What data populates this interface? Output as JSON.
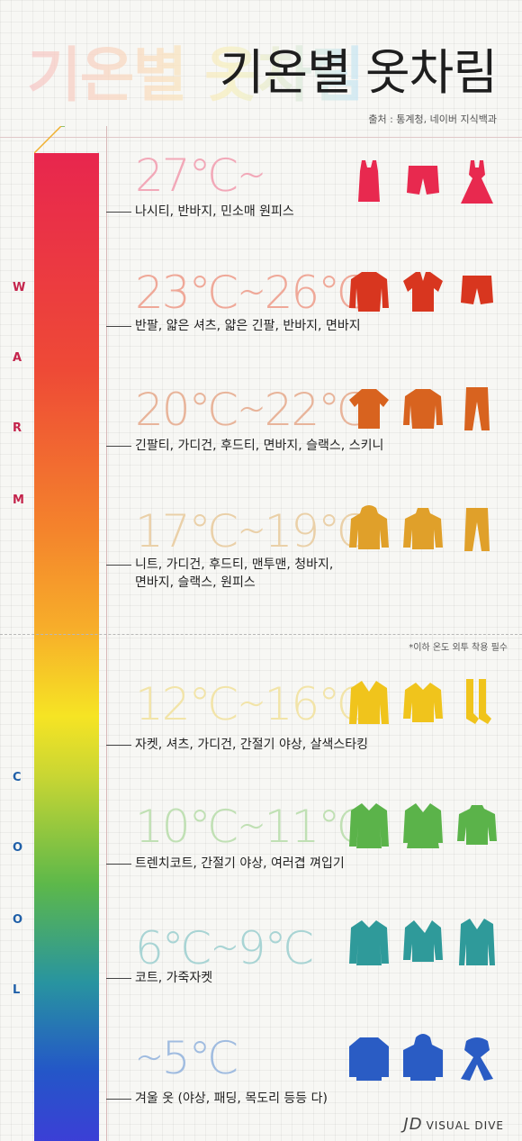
{
  "header": {
    "title": "기온별 옷차림",
    "source": "출처 : 통계청, 네이버 지식백과"
  },
  "side_labels": {
    "warm": [
      "W",
      "A",
      "R",
      "M"
    ],
    "cool": [
      "C",
      "O",
      "O",
      "L"
    ]
  },
  "note": "*이하 온도 외투 착용 필수",
  "colors": {
    "warm_label": "#c4244c",
    "cool_label": "#1f5fa8"
  },
  "bands": [
    {
      "temp": "27℃∼",
      "clothes": "나시티, 반바지, 민소매 원피스",
      "color": "#f2a8b8",
      "icon_color": "#e8294f",
      "icons": [
        "tank-top-icon",
        "shorts-icon",
        "sleeveless-dress-icon"
      ]
    },
    {
      "temp": "23℃∼26℃",
      "clothes": "반팔, 얇은 셔츠, 얇은 긴팔, 반바지, 면바지",
      "color": "#efa898",
      "icon_color": "#d8361f",
      "icons": [
        "long-sleeve-icon",
        "polo-shirt-icon",
        "shorts-icon"
      ]
    },
    {
      "temp": "20℃∼22℃",
      "clothes": "긴팔티, 가디건, 후드티, 면바지, 슬랙스, 스키니",
      "color": "#e8b49a",
      "icon_color": "#d8631f",
      "icons": [
        "t-shirt-icon",
        "long-sleeve-icon",
        "pants-icon"
      ]
    },
    {
      "temp": "17℃∼19℃",
      "clothes": "니트, 가디건, 후드티, 맨투맨, 청바지,\n면바지, 슬랙스, 원피스",
      "color": "#ead0a8",
      "icon_color": "#e0a02a",
      "icons": [
        "hoodie-icon",
        "sweater-icon",
        "pants-icon"
      ]
    },
    {
      "temp": "12℃∼16℃",
      "clothes": "자켓, 셔츠, 가디건, 간절기 야상, 살색스타킹",
      "color": "#f2e4a8",
      "icon_color": "#f0c41c",
      "icons": [
        "blazer-icon",
        "jacket-icon",
        "stockings-icon"
      ]
    },
    {
      "temp": "10℃∼11℃",
      "clothes": "트렌치코트, 간절기 야상, 여러겹 껴입기",
      "color": "#c0e0b4",
      "icon_color": "#5bb34a",
      "icons": [
        "trench-coat-icon",
        "double-coat-icon",
        "pattern-sweater-icon"
      ]
    },
    {
      "temp": "6℃∼9℃",
      "clothes": "코트, 가죽자켓",
      "color": "#a8d4d4",
      "icon_color": "#2f9a9a",
      "icons": [
        "trench-coat-icon",
        "leather-jacket-icon",
        "coat-icon"
      ]
    },
    {
      "temp": "∼5℃",
      "clothes": "겨울 옷 (야상, 패딩, 목도리 등등 다)",
      "color": "#a0bce0",
      "icon_color": "#2a5cc4",
      "icons": [
        "padding-icon",
        "hooded-padding-icon",
        "scarf-icon"
      ]
    }
  ],
  "logo": {
    "mark": "JD",
    "text": "VISUAL DIVE"
  }
}
